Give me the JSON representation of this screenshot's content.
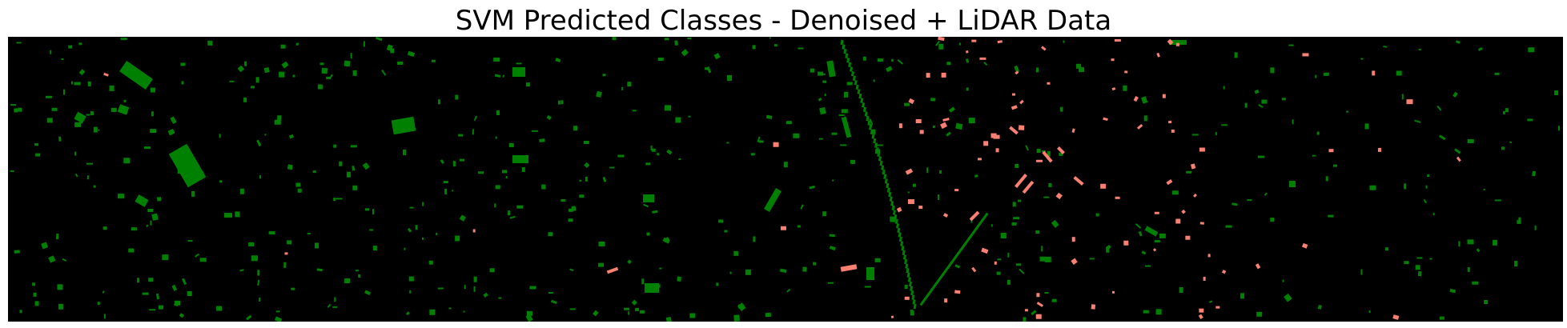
{
  "figure": {
    "title": "SVM Predicted Classes - Denoised + LiDAR Data"
  },
  "map": {
    "background_color": "#000000",
    "classes": [
      {
        "color": "#008000"
      },
      {
        "color": "#fa8072"
      }
    ]
  }
}
